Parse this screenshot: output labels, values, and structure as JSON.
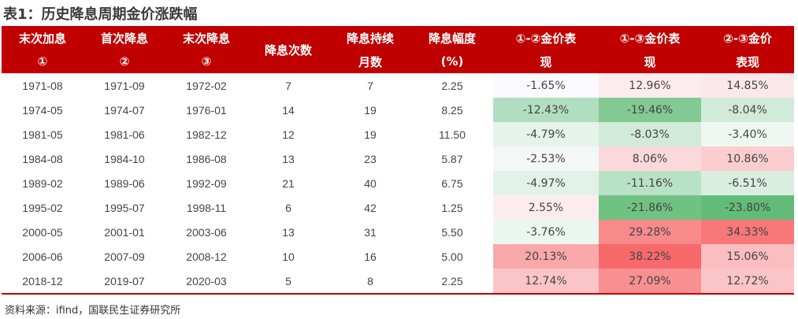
{
  "title": "表1：历史降息周期金价涨跌幅",
  "headers": [
    {
      "l1": "末次加息",
      "l2": "①"
    },
    {
      "l1": "首次降息",
      "l2": "②"
    },
    {
      "l1": "末次降息",
      "l2": "③"
    },
    {
      "l1": "降息次数",
      "l2": ""
    },
    {
      "l1": "降息持续",
      "l2": "月数"
    },
    {
      "l1": "降息幅度",
      "l2": "(%)"
    },
    {
      "l1": "①-②金价表",
      "l2": "现"
    },
    {
      "l1": "①-③金价表",
      "l2": "现"
    },
    {
      "l1": "②-③金价",
      "l2": "表现"
    }
  ],
  "rows": [
    {
      "c": [
        "1971-08",
        "1971-09",
        "1972-02",
        "7",
        "7",
        "2.25",
        "-1.65%",
        "12.96%",
        "14.85%"
      ],
      "bg": [
        "#fbfaff",
        "#fdecef",
        "#fce8ea"
      ]
    },
    {
      "c": [
        "1974-05",
        "1974-07",
        "1976-01",
        "14",
        "19",
        "8.25",
        "-12.43%",
        "-19.46%",
        "-8.04%"
      ],
      "bg": [
        "#b1dec0",
        "#82c993",
        "#d1eada"
      ]
    },
    {
      "c": [
        "1981-05",
        "1981-06",
        "1982-12",
        "12",
        "19",
        "11.50",
        "-4.79%",
        "-8.03%",
        "-3.40%"
      ],
      "bg": [
        "#e5f3ea",
        "#d1eada",
        "#eef7f1"
      ]
    },
    {
      "c": [
        "1984-08",
        "1984-10",
        "1986-08",
        "13",
        "23",
        "5.87",
        "-2.53%",
        "8.06%",
        "10.86%"
      ],
      "bg": [
        "#f3f8f6",
        "#fbd8db",
        "#fbcdd0"
      ]
    },
    {
      "c": [
        "1989-02",
        "1989-06",
        "1992-09",
        "21",
        "40",
        "6.75",
        "-4.97%",
        "-11.16%",
        "-6.51%"
      ],
      "bg": [
        "#e3f2e8",
        "#b9e1c6",
        "#d9eee0"
      ]
    },
    {
      "c": [
        "1995-02",
        "1995-07",
        "1998-11",
        "6",
        "42",
        "1.25",
        "2.55%",
        "-21.86%",
        "-23.80%"
      ],
      "bg": [
        "#fdecee",
        "#70c283",
        "#62bc77"
      ]
    },
    {
      "c": [
        "2000-05",
        "2001-01",
        "2003-06",
        "13",
        "31",
        "5.50",
        "-3.76%",
        "29.28%",
        "34.33%"
      ],
      "bg": [
        "#ebf6ef",
        "#f88a8c",
        "#f87778"
      ]
    },
    {
      "c": [
        "2006-06",
        "2007-09",
        "2008-12",
        "10",
        "16",
        "5.00",
        "20.13%",
        "38.22%",
        "15.06%"
      ],
      "bg": [
        "#f9a8aa",
        "#f8696b",
        "#fabdc0"
      ]
    },
    {
      "c": [
        "2018-12",
        "2019-07",
        "2020-03",
        "5",
        "8",
        "2.25",
        "12.74%",
        "27.09%",
        "12.72%"
      ],
      "bg": [
        "#fbc4c7",
        "#f88f91",
        "#fbc4c7"
      ]
    }
  ],
  "colors": {
    "header": "#c00000",
    "positive": "#f8696b",
    "negative": "#63be7b"
  },
  "source": "资料来源：ifind，国联民生证券研究所"
}
